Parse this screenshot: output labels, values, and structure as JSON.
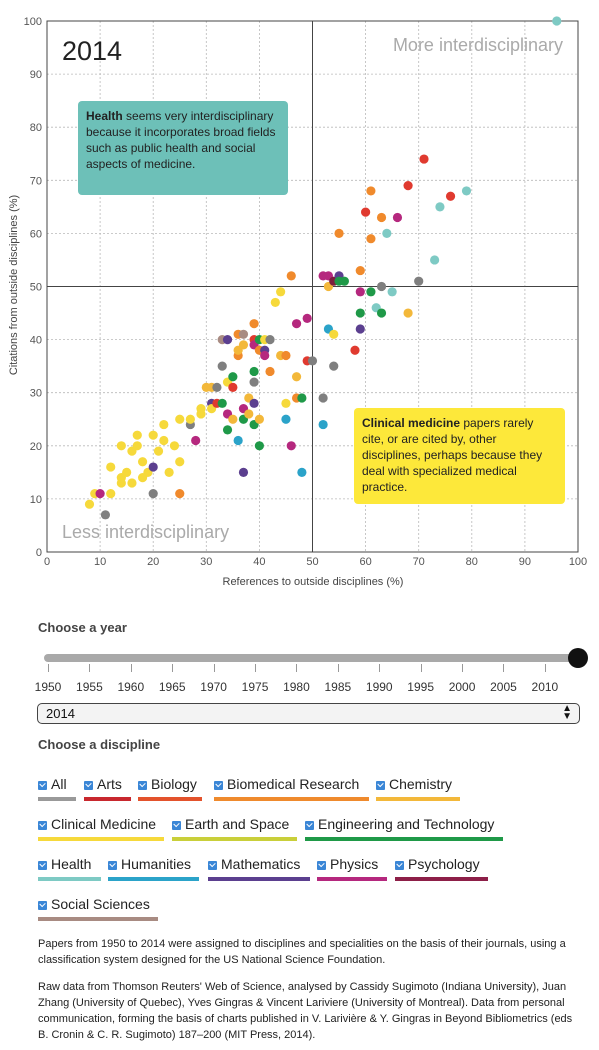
{
  "chart_data": {
    "type": "scatter",
    "year_label": "2014",
    "xlabel": "References to outside disciplines (%)",
    "ylabel": "Citations from outside disciplines (%)",
    "xlim": [
      0,
      100
    ],
    "ylim": [
      0,
      100
    ],
    "ticks": [
      "0",
      "10",
      "20",
      "30",
      "40",
      "50",
      "60",
      "70",
      "80",
      "90",
      "100"
    ],
    "grid": true,
    "reference_lines": {
      "x": 50,
      "y": 50
    },
    "corner_labels": {
      "top_right": "More interdisciplinary",
      "bottom_left": "Less interdisciplinary"
    },
    "colors": {
      "Social Sciences": "#a88b82",
      "Humanities": "#f2e64a",
      "Arts": "#e03a2f",
      "Biology": "#f08a2c",
      "Biomedical Research": "#f28f2e",
      "Chemistry": "#f3b83a",
      "Clinical Medicine": "#f6d93b",
      "Earth and Space": "#f2bf3a",
      "Engineering and Technology": "#1f9948",
      "Health": "#7ecac4",
      "Mathematics": "#5b3f8f",
      "Physics": "#b5287e",
      "Psychology": "#7c1f3d",
      "All": "#999999",
      "Teal": "#2ba3c9",
      "Gray": "#7f7f7f"
    },
    "points": [
      {
        "x": 8,
        "y": 9,
        "c": "Clinical Medicine"
      },
      {
        "x": 9,
        "y": 11,
        "c": "Clinical Medicine"
      },
      {
        "x": 10,
        "y": 11,
        "c": "Physics"
      },
      {
        "x": 11,
        "y": 7,
        "c": "Gray"
      },
      {
        "x": 12,
        "y": 11,
        "c": "Clinical Medicine"
      },
      {
        "x": 12,
        "y": 16,
        "c": "Clinical Medicine"
      },
      {
        "x": 14,
        "y": 13,
        "c": "Clinical Medicine"
      },
      {
        "x": 14,
        "y": 14,
        "c": "Clinical Medicine"
      },
      {
        "x": 14,
        "y": 20,
        "c": "Clinical Medicine"
      },
      {
        "x": 15,
        "y": 15,
        "c": "Clinical Medicine"
      },
      {
        "x": 16,
        "y": 19,
        "c": "Clinical Medicine"
      },
      {
        "x": 16,
        "y": 13,
        "c": "Clinical Medicine"
      },
      {
        "x": 17,
        "y": 20,
        "c": "Clinical Medicine"
      },
      {
        "x": 17,
        "y": 22,
        "c": "Clinical Medicine"
      },
      {
        "x": 18,
        "y": 17,
        "c": "Clinical Medicine"
      },
      {
        "x": 18,
        "y": 14,
        "c": "Clinical Medicine"
      },
      {
        "x": 19,
        "y": 15,
        "c": "Clinical Medicine"
      },
      {
        "x": 20,
        "y": 16,
        "c": "Mathematics"
      },
      {
        "x": 20,
        "y": 22,
        "c": "Clinical Medicine"
      },
      {
        "x": 20,
        "y": 11,
        "c": "Gray"
      },
      {
        "x": 21,
        "y": 19,
        "c": "Clinical Medicine"
      },
      {
        "x": 22,
        "y": 24,
        "c": "Clinical Medicine"
      },
      {
        "x": 22,
        "y": 21,
        "c": "Clinical Medicine"
      },
      {
        "x": 23,
        "y": 15,
        "c": "Clinical Medicine"
      },
      {
        "x": 24,
        "y": 20,
        "c": "Clinical Medicine"
      },
      {
        "x": 25,
        "y": 17,
        "c": "Clinical Medicine"
      },
      {
        "x": 25,
        "y": 11,
        "c": "Biology"
      },
      {
        "x": 25,
        "y": 25,
        "c": "Clinical Medicine"
      },
      {
        "x": 27,
        "y": 24,
        "c": "Gray"
      },
      {
        "x": 27,
        "y": 25,
        "c": "Clinical Medicine"
      },
      {
        "x": 28,
        "y": 21,
        "c": "Physics"
      },
      {
        "x": 29,
        "y": 26,
        "c": "Clinical Medicine"
      },
      {
        "x": 29,
        "y": 27,
        "c": "Clinical Medicine"
      },
      {
        "x": 30,
        "y": 31,
        "c": "Chemistry"
      },
      {
        "x": 31,
        "y": 28,
        "c": "Mathematics"
      },
      {
        "x": 31,
        "y": 31,
        "c": "Chemistry"
      },
      {
        "x": 31,
        "y": 27,
        "c": "Clinical Medicine"
      },
      {
        "x": 32,
        "y": 28,
        "c": "Arts"
      },
      {
        "x": 32,
        "y": 31,
        "c": "Gray"
      },
      {
        "x": 33,
        "y": 40,
        "c": "Social Sciences"
      },
      {
        "x": 33,
        "y": 28,
        "c": "Engineering and Technology"
      },
      {
        "x": 33,
        "y": 35,
        "c": "Gray"
      },
      {
        "x": 34,
        "y": 40,
        "c": "Mathematics"
      },
      {
        "x": 34,
        "y": 26,
        "c": "Physics"
      },
      {
        "x": 34,
        "y": 23,
        "c": "Engineering and Technology"
      },
      {
        "x": 34,
        "y": 32,
        "c": "Clinical Medicine"
      },
      {
        "x": 35,
        "y": 33,
        "c": "Engineering and Technology"
      },
      {
        "x": 35,
        "y": 31,
        "c": "Arts"
      },
      {
        "x": 35,
        "y": 25,
        "c": "Chemistry"
      },
      {
        "x": 36,
        "y": 41,
        "c": "Biology"
      },
      {
        "x": 36,
        "y": 37,
        "c": "Biology"
      },
      {
        "x": 36,
        "y": 38,
        "c": "Chemistry"
      },
      {
        "x": 36,
        "y": 21,
        "c": "Teal"
      },
      {
        "x": 37,
        "y": 41,
        "c": "Social Sciences"
      },
      {
        "x": 37,
        "y": 39,
        "c": "Chemistry"
      },
      {
        "x": 37,
        "y": 15,
        "c": "Mathematics"
      },
      {
        "x": 37,
        "y": 27,
        "c": "Physics"
      },
      {
        "x": 37,
        "y": 25,
        "c": "Engineering and Technology"
      },
      {
        "x": 38,
        "y": 29,
        "c": "Chemistry"
      },
      {
        "x": 38,
        "y": 26,
        "c": "Chemistry"
      },
      {
        "x": 39,
        "y": 43,
        "c": "Biology"
      },
      {
        "x": 39,
        "y": 40,
        "c": "Arts"
      },
      {
        "x": 39,
        "y": 39,
        "c": "Physics"
      },
      {
        "x": 39,
        "y": 34,
        "c": "Engineering and Technology"
      },
      {
        "x": 39,
        "y": 32,
        "c": "Gray"
      },
      {
        "x": 39,
        "y": 28,
        "c": "Mathematics"
      },
      {
        "x": 39,
        "y": 24,
        "c": "Engineering and Technology"
      },
      {
        "x": 40,
        "y": 38,
        "c": "Biology"
      },
      {
        "x": 40,
        "y": 40,
        "c": "Engineering and Technology"
      },
      {
        "x": 40,
        "y": 20,
        "c": "Engineering and Technology"
      },
      {
        "x": 40,
        "y": 25,
        "c": "Chemistry"
      },
      {
        "x": 41,
        "y": 38,
        "c": "Mathematics"
      },
      {
        "x": 41,
        "y": 37,
        "c": "Physics"
      },
      {
        "x": 41,
        "y": 40,
        "c": "Clinical Medicine"
      },
      {
        "x": 42,
        "y": 40,
        "c": "Gray"
      },
      {
        "x": 42,
        "y": 34,
        "c": "Biology"
      },
      {
        "x": 43,
        "y": 47,
        "c": "Clinical Medicine"
      },
      {
        "x": 44,
        "y": 49,
        "c": "Clinical Medicine"
      },
      {
        "x": 44,
        "y": 37,
        "c": "Chemistry"
      },
      {
        "x": 45,
        "y": 37,
        "c": "Biology"
      },
      {
        "x": 45,
        "y": 28,
        "c": "Clinical Medicine"
      },
      {
        "x": 45,
        "y": 25,
        "c": "Teal"
      },
      {
        "x": 46,
        "y": 52,
        "c": "Biology"
      },
      {
        "x": 46,
        "y": 20,
        "c": "Physics"
      },
      {
        "x": 47,
        "y": 43,
        "c": "Physics"
      },
      {
        "x": 47,
        "y": 33,
        "c": "Chemistry"
      },
      {
        "x": 47,
        "y": 29,
        "c": "Biology"
      },
      {
        "x": 48,
        "y": 15,
        "c": "Teal"
      },
      {
        "x": 48,
        "y": 29,
        "c": "Engineering and Technology"
      },
      {
        "x": 49,
        "y": 44,
        "c": "Physics"
      },
      {
        "x": 49,
        "y": 36,
        "c": "Arts"
      },
      {
        "x": 50,
        "y": 36,
        "c": "Gray"
      },
      {
        "x": 52,
        "y": 29,
        "c": "Gray"
      },
      {
        "x": 52,
        "y": 52,
        "c": "Physics"
      },
      {
        "x": 52,
        "y": 24,
        "c": "Teal"
      },
      {
        "x": 53,
        "y": 52,
        "c": "Physics"
      },
      {
        "x": 53,
        "y": 50,
        "c": "Chemistry"
      },
      {
        "x": 53,
        "y": 42,
        "c": "Teal"
      },
      {
        "x": 54,
        "y": 51,
        "c": "Psychology"
      },
      {
        "x": 54,
        "y": 41,
        "c": "Clinical Medicine"
      },
      {
        "x": 54,
        "y": 35,
        "c": "Gray"
      },
      {
        "x": 55,
        "y": 60,
        "c": "Biology"
      },
      {
        "x": 55,
        "y": 52,
        "c": "Mathematics"
      },
      {
        "x": 55,
        "y": 51,
        "c": "Engineering and Technology"
      },
      {
        "x": 56,
        "y": 51,
        "c": "Engineering and Technology"
      },
      {
        "x": 58,
        "y": 38,
        "c": "Arts"
      },
      {
        "x": 59,
        "y": 53,
        "c": "Biology"
      },
      {
        "x": 59,
        "y": 49,
        "c": "Physics"
      },
      {
        "x": 59,
        "y": 45,
        "c": "Engineering and Technology"
      },
      {
        "x": 59,
        "y": 42,
        "c": "Mathematics"
      },
      {
        "x": 60,
        "y": 64,
        "c": "Arts"
      },
      {
        "x": 61,
        "y": 68,
        "c": "Biology"
      },
      {
        "x": 61,
        "y": 59,
        "c": "Biology"
      },
      {
        "x": 61,
        "y": 49,
        "c": "Engineering and Technology"
      },
      {
        "x": 62,
        "y": 46,
        "c": "Health"
      },
      {
        "x": 63,
        "y": 63,
        "c": "Biology"
      },
      {
        "x": 63,
        "y": 50,
        "c": "Gray"
      },
      {
        "x": 63,
        "y": 45,
        "c": "Engineering and Technology"
      },
      {
        "x": 64,
        "y": 60,
        "c": "Health"
      },
      {
        "x": 65,
        "y": 49,
        "c": "Health"
      },
      {
        "x": 66,
        "y": 63,
        "c": "Physics"
      },
      {
        "x": 68,
        "y": 69,
        "c": "Arts"
      },
      {
        "x": 68,
        "y": 45,
        "c": "Chemistry"
      },
      {
        "x": 70,
        "y": 51,
        "c": "Gray"
      },
      {
        "x": 71,
        "y": 74,
        "c": "Arts"
      },
      {
        "x": 73,
        "y": 55,
        "c": "Health"
      },
      {
        "x": 74,
        "y": 65,
        "c": "Health"
      },
      {
        "x": 76,
        "y": 67,
        "c": "Arts"
      },
      {
        "x": 79,
        "y": 68,
        "c": "Health"
      },
      {
        "x": 96,
        "y": 100,
        "c": "Health"
      }
    ]
  },
  "callouts": {
    "health_bold": "Health",
    "health_text": " seems very interdisciplinary because it incorporates broad fields such as public health and social aspects of medicine.",
    "clinical_bold": "Clinical medicine",
    "clinical_text": " papers rarely cite, or are cited by, other disciplines, perhaps because they deal with specialized medical practice."
  },
  "controls": {
    "choose_year_label": "Choose a year",
    "year_value": 2014,
    "year_ticks": [
      "1950",
      "1955",
      "1960",
      "1965",
      "1970",
      "1975",
      "1980",
      "1985",
      "1990",
      "1995",
      "2000",
      "2005",
      "2010"
    ],
    "select_value": "2014",
    "choose_discipline_label": "Choose a discipline",
    "disciplines": [
      {
        "label": "All",
        "color": "#999999"
      },
      {
        "label": "Arts",
        "color": "#c8282e"
      },
      {
        "label": "Biology",
        "color": "#e3522c"
      },
      {
        "label": "Biomedical Research",
        "color": "#ef8a2d"
      },
      {
        "label": "Chemistry",
        "color": "#f3b83a"
      },
      {
        "label": "Clinical Medicine",
        "color": "#f6d93b"
      },
      {
        "label": "Earth and Space",
        "color": "#c9cf3a"
      },
      {
        "label": "Engineering and Technology",
        "color": "#1f9948"
      },
      {
        "label": "Health",
        "color": "#7ecac4"
      },
      {
        "label": "Humanities",
        "color": "#2ba3c9"
      },
      {
        "label": "Mathematics",
        "color": "#5b3f8f"
      },
      {
        "label": "Physics",
        "color": "#b5287e"
      },
      {
        "label": "Psychology",
        "color": "#8d1f48"
      },
      {
        "label": "Social Sciences",
        "color": "#a88b82"
      }
    ]
  },
  "footer": {
    "p1": "Papers from 1950 to 2014 were assigned to disciplines and specialities on the basis of their journals, using a classification system designed for the US National Science Foundation.",
    "p2": "Raw data from Thomson Reuters' Web of Science, analysed by Cassidy Sugimoto (Indiana University), Juan Zhang (University of Quebec), Yves Gingras & Vincent Lariviere (University of Montreal). Data from personal communication, forming the basis of charts published in V. Larivière & Y. Gingras in Beyond Bibliometrics (eds B. Cronin & C. R. Sugimoto) 187–200 (MIT Press, 2014)."
  }
}
